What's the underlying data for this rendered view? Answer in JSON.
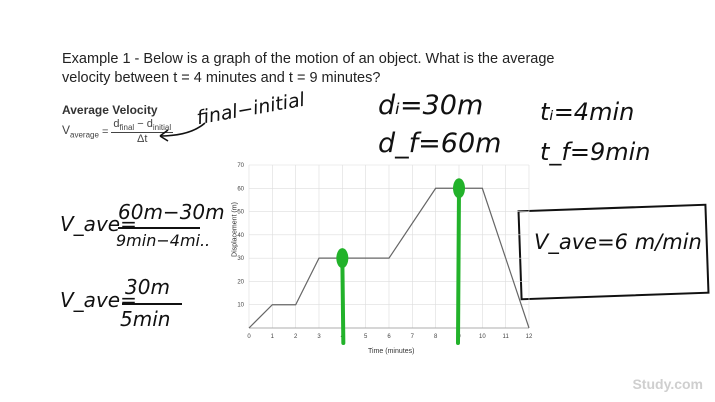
{
  "question": {
    "prefix": "Example 1 -",
    "line1": "Below is a graph of the motion of an object. What is the average",
    "line2": "velocity between t = 4 minutes and t = 9 minutes?"
  },
  "formula": {
    "title": "Average Velocity",
    "lhs": "V",
    "lhs_sub": "average",
    "equals": "=",
    "numerator_a": "d",
    "numerator_a_sub": "final",
    "minus": "−",
    "numerator_b": "d",
    "numerator_b_sub": "initial",
    "denominator": "Δt"
  },
  "handwriting": {
    "annotation": "final−initial",
    "di": "dᵢ=30m",
    "df": "d_f=60m",
    "ti": "tᵢ=4min",
    "tf": "t_f=9min",
    "vave1_lhs": "V_ave=",
    "vave1_num": "60m−30m",
    "vave1_den": "9min−4mi..",
    "vave2_lhs": "V_ave=",
    "vave2_num": "30m",
    "vave2_den": "5min",
    "answer": "V_ave=6 m/min"
  },
  "chart_data": {
    "type": "line",
    "xlabel": "Time (minutes)",
    "ylabel": "Displacement (m)",
    "xlim": [
      0,
      12
    ],
    "ylim": [
      0,
      70
    ],
    "xticks": [
      0,
      1,
      2,
      3,
      4,
      5,
      6,
      7,
      8,
      9,
      10,
      11,
      12
    ],
    "yticks": [
      10,
      20,
      30,
      40,
      50,
      60,
      70
    ],
    "grid": true,
    "x": [
      0,
      1,
      2,
      3,
      6,
      8,
      10,
      12
    ],
    "y": [
      0,
      10,
      10,
      30,
      30,
      60,
      60,
      0
    ],
    "highlights": [
      {
        "x": 4,
        "y": 30
      },
      {
        "x": 9,
        "y": 60
      }
    ],
    "colors": {
      "line": "#666666",
      "grid": "#dddddd",
      "marker": "#22b22a"
    }
  },
  "watermark": "Study.com"
}
